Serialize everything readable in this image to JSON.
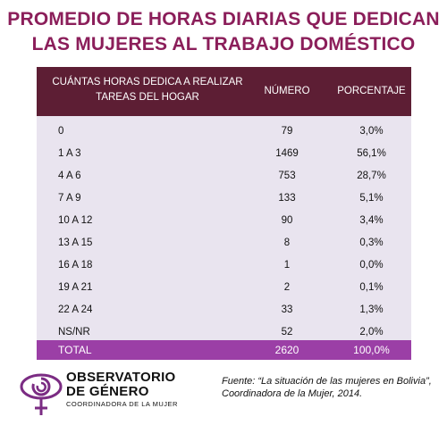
{
  "title": {
    "line1": "PROMEDIO DE HORAS DIARIAS QUE  DEDICAN",
    "line2": "LAS MUJERES AL TRABAJO DOMÉSTICO"
  },
  "table": {
    "header": {
      "col1_line1": "CUÁNTAS HORAS DEDICA A REALIZAR",
      "col1_line2": "TAREAS DEL HOGAR",
      "col2": "NÚMERO",
      "col3": "PORCENTAJE"
    },
    "rows": [
      {
        "hours": "0",
        "number": "79",
        "percent": "3,0%"
      },
      {
        "hours": "1 A 3",
        "number": "1469",
        "percent": "56,1%"
      },
      {
        "hours": "4 A 6",
        "number": "753",
        "percent": "28,7%"
      },
      {
        "hours": "7 A 9",
        "number": "133",
        "percent": "5,1%"
      },
      {
        "hours": "10 A 12",
        "number": "90",
        "percent": "3,4%"
      },
      {
        "hours": "13 A 15",
        "number": "8",
        "percent": "0,3%"
      },
      {
        "hours": "16 A 18",
        "number": "1",
        "percent": "0,0%"
      },
      {
        "hours": "19 A 21",
        "number": "2",
        "percent": "0,1%"
      },
      {
        "hours": "22 A 24",
        "number": "33",
        "percent": "1,3%"
      },
      {
        "hours": "NS/NR",
        "number": "52",
        "percent": "2,0%"
      }
    ],
    "total": {
      "label": "TOTAL",
      "number": "2620",
      "percent": "100,0%"
    }
  },
  "logo": {
    "line1": "OBSERVATORIO",
    "line2": "DE GÉNERO",
    "line3": "COORDINADORA DE LA MUJER"
  },
  "source": {
    "line1": "Fuente: “La situación de las mujeres en Bolivia”,",
    "line2": "Coordinadora de la Mujer, 2014."
  },
  "colors": {
    "title": "#8b1e5a",
    "header_bg": "#5d1e34",
    "body_bg": "#e9e4ef",
    "total_bg": "#9b3fa6",
    "logo_accent": "#7b2c83"
  }
}
